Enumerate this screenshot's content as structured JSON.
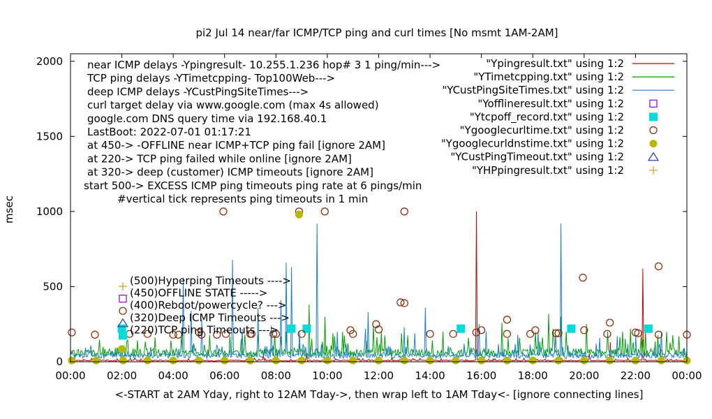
{
  "chart_data": {
    "type": "line",
    "title": "pi2 Jul 14  near/far ICMP/TCP ping and curl times [No msmt 1AM-2AM]",
    "ylabel": "msec",
    "xlabel": "<-START at 2AM Yday, right to 12AM Tday->, then wrap left to 1AM Tday<- [ignore connecting lines]",
    "xlim": [
      0,
      24
    ],
    "ylim": [
      0,
      2050
    ],
    "x_ticks": [
      {
        "value": 0,
        "label": "00:00"
      },
      {
        "value": 2,
        "label": "02:00"
      },
      {
        "value": 4,
        "label": "04:00"
      },
      {
        "value": 6,
        "label": "06:00"
      },
      {
        "value": 8,
        "label": "08:00"
      },
      {
        "value": 10,
        "label": "10:00"
      },
      {
        "value": 12,
        "label": "12:00"
      },
      {
        "value": 14,
        "label": "14:00"
      },
      {
        "value": 16,
        "label": "16:00"
      },
      {
        "value": 18,
        "label": "18:00"
      },
      {
        "value": 20,
        "label": "20:00"
      },
      {
        "value": 22,
        "label": "22:00"
      },
      {
        "value": 24,
        "label": "00:00"
      }
    ],
    "y_ticks": [
      {
        "value": 0,
        "label": "0"
      },
      {
        "value": 500,
        "label": "500"
      },
      {
        "value": 1000,
        "label": "1000"
      },
      {
        "value": 1500,
        "label": "1500"
      },
      {
        "value": 2000,
        "label": "2000"
      }
    ],
    "info_lines": [
      "near ICMP delays -Ypingresult- 10.255.1.236 hop# 3 1 ping/min--->",
      "TCP ping delays -YTimetcpping- Top100Web--->",
      "deep ICMP delays -YCustPingSiteTimes--->",
      "curl target delay via www.google.com (max 4s allowed)",
      "google.com DNS query time via 192.168.40.1",
      "LastBoot: 2022-07-01 01:17:21",
      "at 450-> -OFFLINE near ICMP+TCP ping fail [ignore 2AM]",
      "at 220-> TCP ping failed while online [ignore 2AM]",
      "at 320-> deep (customer) ICMP timeouts [ignore 2AM]",
      "start 500-> EXCESS ICMP ping timeouts ping rate at 6 pings/min",
      "#vertical tick represents ping timeouts in 1 min"
    ],
    "marker_notes": [
      {
        "label": "(500)Hyperping Timeouts ---->",
        "marker": "plus",
        "color": "#e0a000"
      },
      {
        "label": "(450)OFFLINE STATE ----->",
        "marker": "square-open",
        "color": "#9400d3"
      },
      {
        "label": "(400)Reboot/powercycle? --->",
        "marker": "circle-open",
        "color": "#8b2500"
      },
      {
        "label": "(320)Deep ICMP Timeouts --->",
        "marker": "triangle-open",
        "color": "#1f3fa0"
      },
      {
        "label": "(220)TCP ping Timeouts --->",
        "marker": "square-filled",
        "color": "#00dcdc"
      }
    ],
    "legend": [
      {
        "label": "\"Ypingresult.txt\" using 1:2",
        "marker": "line",
        "color": "#cc0000"
      },
      {
        "label": "\"YTimetcpping.txt\" using 1:2",
        "marker": "line",
        "color": "#00a000"
      },
      {
        "label": "\"YCustPingSiteTimes.txt\" using 1:2",
        "marker": "line",
        "color": "#1a7fd4"
      },
      {
        "label": "\"Yofflineresult.txt\" using 1:2",
        "marker": "square-open",
        "color": "#9400d3"
      },
      {
        "label": "\"Ytcpoff_record.txt\" using 1:2",
        "marker": "square-filled",
        "color": "#00dcdc"
      },
      {
        "label": "\"Ygooglecurltime.txt\" using 1:2",
        "marker": "circle-open",
        "color": "#8b2500"
      },
      {
        "label": "\"Ygooglecurldnstime.txt\" using 1:2",
        "marker": "circle-filled",
        "color": "#b8b800"
      },
      {
        "label": "\"YCustPingTimeout.txt\" using 1:2",
        "marker": "triangle-open",
        "color": "#1f3fa0"
      },
      {
        "label": "\"YHPpingresult.txt\" using 1:2",
        "marker": "plus",
        "color": "#e0a000"
      }
    ],
    "series": [
      {
        "name": "Ypingresult.txt",
        "color": "#cc0000",
        "baseline": 8,
        "spikes": [
          [
            2.5,
            25
          ],
          [
            7.5,
            40
          ],
          [
            9.2,
            60
          ],
          [
            12.5,
            30
          ],
          [
            15.8,
            1000
          ],
          [
            20.2,
            50
          ],
          [
            21.0,
            130
          ],
          [
            22.3,
            620
          ],
          [
            23.0,
            40
          ]
        ]
      },
      {
        "name": "YTimetcpping.txt",
        "color": "#00a000",
        "baseline": 60,
        "spikes": [
          [
            6.2,
            170
          ],
          [
            6.8,
            180
          ],
          [
            8.4,
            200
          ],
          [
            9.3,
            380
          ],
          [
            9.9,
            300
          ],
          [
            10.2,
            190
          ],
          [
            10.6,
            200
          ],
          [
            11.8,
            240
          ],
          [
            12.1,
            200
          ],
          [
            12.9,
            190
          ],
          [
            14.5,
            200
          ],
          [
            15.5,
            160
          ],
          [
            16.8,
            260
          ],
          [
            17.5,
            160
          ],
          [
            18.1,
            200
          ],
          [
            18.6,
            320
          ],
          [
            18.8,
            220
          ],
          [
            19.1,
            300
          ],
          [
            19.3,
            200
          ],
          [
            20.1,
            250
          ],
          [
            20.9,
            200
          ],
          [
            21.5,
            200
          ],
          [
            21.8,
            220
          ],
          [
            22.2,
            170
          ],
          [
            22.4,
            200
          ],
          [
            23.2,
            200
          ],
          [
            23.7,
            170
          ]
        ]
      },
      {
        "name": "YCustPingSiteTimes.txt",
        "color": "#1a7fd4",
        "baseline": 40,
        "spikes": [
          [
            4.4,
            560
          ],
          [
            4.7,
            340
          ],
          [
            5.1,
            280
          ],
          [
            6.3,
            680
          ],
          [
            6.7,
            220
          ],
          [
            7.3,
            360
          ],
          [
            7.8,
            240
          ],
          [
            8.2,
            410
          ],
          [
            8.4,
            660
          ],
          [
            8.6,
            630
          ],
          [
            8.9,
            200
          ],
          [
            9.6,
            920
          ],
          [
            10.4,
            200
          ],
          [
            11.5,
            220
          ],
          [
            11.6,
            330
          ],
          [
            13.0,
            230
          ],
          [
            13.4,
            190
          ],
          [
            13.8,
            360
          ],
          [
            15.9,
            250
          ],
          [
            16.2,
            200
          ],
          [
            17.4,
            180
          ],
          [
            18.2,
            200
          ],
          [
            18.9,
            180
          ],
          [
            19.1,
            920
          ],
          [
            20.6,
            160
          ],
          [
            21.3,
            170
          ],
          [
            22.0,
            170
          ],
          [
            23.0,
            200
          ]
        ]
      },
      {
        "name": "Ytcpoff_record.txt",
        "color": "#00dcdc",
        "marker": "square-filled",
        "points": [
          [
            2.0,
            220
          ],
          [
            8.6,
            220
          ],
          [
            9.2,
            220
          ],
          [
            15.2,
            220
          ],
          [
            19.5,
            220
          ],
          [
            22.5,
            220
          ]
        ]
      },
      {
        "name": "Ygooglecurltime.txt",
        "color": "#8b2500",
        "marker": "circle-open",
        "points": [
          [
            0.05,
            195
          ],
          [
            0.95,
            180
          ],
          [
            2.3,
            185
          ],
          [
            3.0,
            185
          ],
          [
            4.0,
            180
          ],
          [
            4.2,
            180
          ],
          [
            5.0,
            195
          ],
          [
            5.1,
            180
          ],
          [
            5.7,
            180
          ],
          [
            5.95,
            1000
          ],
          [
            6.05,
            185
          ],
          [
            7.0,
            185
          ],
          [
            7.05,
            185
          ],
          [
            7.9,
            185
          ],
          [
            8.0,
            185
          ],
          [
            8.9,
            1000
          ],
          [
            9.0,
            185
          ],
          [
            9.9,
            1000
          ],
          [
            10.9,
            210
          ],
          [
            11.0,
            185
          ],
          [
            11.9,
            250
          ],
          [
            12.0,
            215
          ],
          [
            12.85,
            395
          ],
          [
            13.0,
            1000
          ],
          [
            13.0,
            390
          ],
          [
            14.0,
            185
          ],
          [
            14.9,
            185
          ],
          [
            15.8,
            195
          ],
          [
            16.0,
            210
          ],
          [
            17.0,
            280
          ],
          [
            17.0,
            185
          ],
          [
            17.9,
            185
          ],
          [
            18.1,
            210
          ],
          [
            18.9,
            190
          ],
          [
            19.0,
            190
          ],
          [
            19.95,
            560
          ],
          [
            20.0,
            210
          ],
          [
            20.9,
            185
          ],
          [
            21.0,
            260
          ],
          [
            22.0,
            195
          ],
          [
            22.1,
            190
          ],
          [
            22.9,
            635
          ],
          [
            22.9,
            180
          ],
          [
            24.0,
            180
          ]
        ]
      },
      {
        "name": "Ygooglecurldnstime.txt",
        "color": "#b8b800",
        "marker": "circle-filled",
        "points": [
          [
            0.05,
            8
          ],
          [
            1.0,
            8
          ],
          [
            2.0,
            85
          ],
          [
            2.05,
            8
          ],
          [
            3.0,
            8
          ],
          [
            4.0,
            8
          ],
          [
            5.0,
            8
          ],
          [
            6.0,
            8
          ],
          [
            7.0,
            8
          ],
          [
            8.0,
            8
          ],
          [
            8.9,
            980
          ],
          [
            9.0,
            8
          ],
          [
            10.0,
            8
          ],
          [
            11.0,
            8
          ],
          [
            12.0,
            8
          ],
          [
            13.0,
            8
          ],
          [
            14.0,
            8
          ],
          [
            15.0,
            8
          ],
          [
            16.0,
            8
          ],
          [
            17.0,
            8
          ],
          [
            18.0,
            8
          ],
          [
            19.0,
            8
          ],
          [
            20.0,
            8
          ],
          [
            21.0,
            8
          ],
          [
            22.0,
            8
          ],
          [
            23.0,
            8
          ],
          [
            24.0,
            8
          ]
        ]
      }
    ]
  }
}
